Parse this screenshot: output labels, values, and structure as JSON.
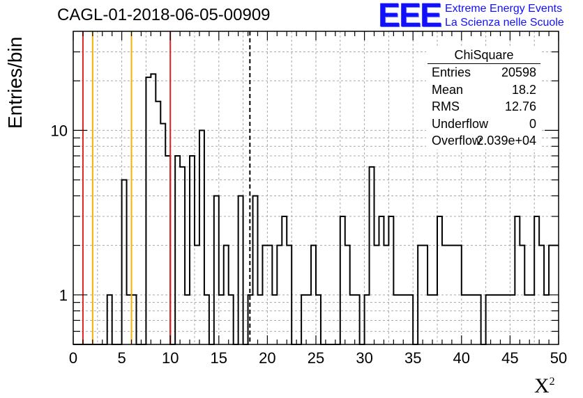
{
  "title": "CAGL-01-2018-06-05-00909",
  "logo": {
    "mark": "EEE",
    "line1": "Extreme Energy Events",
    "line2": "La Scienza nelle Scuole"
  },
  "stats": {
    "name": "ChiSquare",
    "rows": [
      {
        "key": "Entries",
        "value": "20598"
      },
      {
        "key": "Mean",
        "value": "18.2"
      },
      {
        "key": "RMS",
        "value": "12.76"
      },
      {
        "key": "Underflow",
        "value": "0"
      },
      {
        "key": "Overflow",
        "value": "2.039e+04"
      }
    ]
  },
  "chart_data": {
    "type": "histogram",
    "xlabel": "X",
    "xlabel_superscript": "2",
    "ylabel": "Entries/bin",
    "xlim": [
      0,
      50
    ],
    "ylim": [
      0.5,
      40
    ],
    "yscale": "log",
    "grid": true,
    "bin_width": 0.5,
    "x_ticks": [
      0,
      5,
      10,
      15,
      20,
      25,
      30,
      35,
      40,
      45,
      50
    ],
    "x_tick_labels": [
      "0",
      "5",
      "10",
      "15",
      "20",
      "25",
      "30",
      "35",
      "40",
      "45",
      "50"
    ],
    "y_ticks": [
      1,
      10
    ],
    "y_tick_labels": [
      "1",
      "10"
    ],
    "counts": [
      0,
      0,
      0,
      0,
      0,
      0,
      0,
      1,
      0,
      0,
      0,
      0,
      0,
      0,
      5,
      1,
      1,
      0,
      0,
      0,
      0,
      0,
      0,
      0,
      0,
      0,
      0,
      0,
      0,
      0,
      0,
      0,
      0,
      0,
      0,
      0,
      0,
      0,
      0,
      0,
      0,
      0,
      21,
      22,
      15,
      11,
      7,
      7,
      6,
      0,
      2,
      10,
      0
    ],
    "bins": [
      {
        "x": 3.5,
        "y": 1
      },
      {
        "x": 5,
        "y": 5
      },
      {
        "x": 5.5,
        "y": 1
      },
      {
        "x": 6,
        "y": 1
      },
      {
        "x": 7.5,
        "y": 21
      },
      {
        "x": 8,
        "y": 22
      },
      {
        "x": 8.5,
        "y": 15
      },
      {
        "x": 9,
        "y": 11
      },
      {
        "x": 9.5,
        "y": 7
      },
      {
        "x": 10.5,
        "y": 7
      },
      {
        "x": 11,
        "y": 6
      },
      {
        "x": 11.5,
        "y": 1
      },
      {
        "x": 12,
        "y": 7
      },
      {
        "x": 12.5,
        "y": 2
      },
      {
        "x": 13,
        "y": 10
      },
      {
        "x": 13.5,
        "y": 1
      },
      {
        "x": 14.5,
        "y": 4
      },
      {
        "x": 15,
        "y": 1
      },
      {
        "x": 15.5,
        "y": 2
      },
      {
        "x": 16,
        "y": 1
      },
      {
        "x": 17,
        "y": 4
      },
      {
        "x": 18,
        "y": 1
      },
      {
        "x": 18.5,
        "y": 4
      },
      {
        "x": 19,
        "y": 1
      },
      {
        "x": 19.5,
        "y": 2
      },
      {
        "x": 20,
        "y": 2
      },
      {
        "x": 20.5,
        "y": 1
      },
      {
        "x": 21,
        "y": 2
      },
      {
        "x": 21.5,
        "y": 3
      },
      {
        "x": 22,
        "y": 2
      },
      {
        "x": 23.5,
        "y": 1
      },
      {
        "x": 24,
        "y": 1
      },
      {
        "x": 24.5,
        "y": 2
      },
      {
        "x": 25,
        "y": 1
      },
      {
        "x": 27.5,
        "y": 3
      },
      {
        "x": 28,
        "y": 2
      },
      {
        "x": 28.5,
        "y": 1
      },
      {
        "x": 29,
        "y": 1
      },
      {
        "x": 30,
        "y": 1
      },
      {
        "x": 30.5,
        "y": 6
      },
      {
        "x": 31,
        "y": 2
      },
      {
        "x": 31.5,
        "y": 3
      },
      {
        "x": 32,
        "y": 2
      },
      {
        "x": 32.5,
        "y": 3
      },
      {
        "x": 33,
        "y": 1
      },
      {
        "x": 33.5,
        "y": 1
      },
      {
        "x": 34,
        "y": 1
      },
      {
        "x": 34.5,
        "y": 1
      },
      {
        "x": 35.5,
        "y": 2
      },
      {
        "x": 36,
        "y": 2
      },
      {
        "x": 36.5,
        "y": 1
      },
      {
        "x": 37,
        "y": 1
      },
      {
        "x": 37.5,
        "y": 3
      },
      {
        "x": 38,
        "y": 2
      },
      {
        "x": 38.5,
        "y": 2
      },
      {
        "x": 39,
        "y": 2
      },
      {
        "x": 39.5,
        "y": 2
      },
      {
        "x": 40,
        "y": 1
      },
      {
        "x": 40.5,
        "y": 1
      },
      {
        "x": 41,
        "y": 1
      },
      {
        "x": 41.5,
        "y": 1
      },
      {
        "x": 42.5,
        "y": 1
      },
      {
        "x": 43,
        "y": 1
      },
      {
        "x": 43.5,
        "y": 1
      },
      {
        "x": 44,
        "y": 1
      },
      {
        "x": 44.5,
        "y": 1
      },
      {
        "x": 45,
        "y": 1
      },
      {
        "x": 45.5,
        "y": 3
      },
      {
        "x": 46,
        "y": 2
      },
      {
        "x": 46.5,
        "y": 1
      },
      {
        "x": 47,
        "y": 1
      },
      {
        "x": 47.5,
        "y": 3
      },
      {
        "x": 48,
        "y": 2
      },
      {
        "x": 48.5,
        "y": 1
      },
      {
        "x": 49,
        "y": 2
      },
      {
        "x": 49.5,
        "y": 2
      }
    ],
    "vertical_lines": [
      {
        "x": 1,
        "color": "#dd2222",
        "style": "solid"
      },
      {
        "x": 2,
        "color": "#f0b400",
        "style": "solid"
      },
      {
        "x": 6,
        "color": "#f0b400",
        "style": "solid"
      },
      {
        "x": 10,
        "color": "#dd2222",
        "style": "solid"
      },
      {
        "x": 18.2,
        "color": "#000000",
        "style": "dashed"
      }
    ]
  }
}
